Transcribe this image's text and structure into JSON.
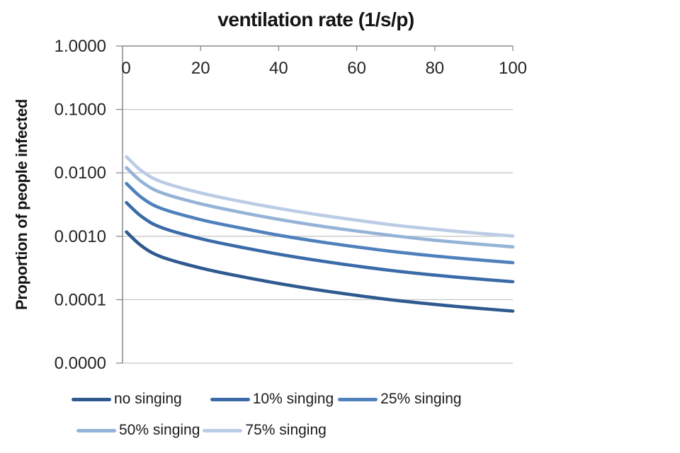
{
  "chart": {
    "title": "ventilation rate (1/s/p)",
    "y_axis_title": "Proportion of people infected"
  },
  "chart_data": {
    "type": "line",
    "title": "",
    "xlabel": "ventilation rate (1/s/p)",
    "ylabel": "Proportion of people infected",
    "x_axis_position": "top",
    "y_scale": "log",
    "x_range": [
      0,
      100
    ],
    "y_range": [
      1e-05,
      1
    ],
    "grid": true,
    "legend_position": "bottom",
    "x_ticks": [
      0,
      20,
      40,
      60,
      80,
      100
    ],
    "y_ticks": [
      {
        "label": "1.0000",
        "value": 1
      },
      {
        "label": "0.1000",
        "value": 0.1
      },
      {
        "label": "0.0100",
        "value": 0.01
      },
      {
        "label": "0.0010",
        "value": 0.001
      },
      {
        "label": "0.0001",
        "value": 0.0001
      },
      {
        "label": "0.0000",
        "value": 1e-05
      }
    ],
    "x": [
      1,
      5,
      10,
      20,
      30,
      40,
      50,
      60,
      70,
      80,
      90,
      100
    ],
    "series": [
      {
        "name": "no singing",
        "color": "#2F5A8F",
        "values": [
          0.00117,
          0.000695,
          0.000472,
          0.000316,
          0.000234,
          0.00018,
          0.000143,
          0.000117,
          9.77e-05,
          8.41e-05,
          7.41e-05,
          6.61e-05
        ]
      },
      {
        "name": "10% singing",
        "color": "#3A6BA8",
        "values": [
          0.00339,
          0.00202,
          0.00137,
          0.000916,
          0.000679,
          0.000522,
          0.000415,
          0.000339,
          0.000283,
          0.000244,
          0.000215,
          0.000192
        ]
      },
      {
        "name": "25% singing",
        "color": "#4F81BD",
        "values": [
          0.00679,
          0.00403,
          0.00274,
          0.00183,
          0.00136,
          0.00104,
          0.000829,
          0.000679,
          0.000567,
          0.000488,
          0.00043,
          0.000383
        ]
      },
      {
        "name": "50% singing",
        "color": "#95B3D7",
        "values": [
          0.01205,
          0.00716,
          0.00486,
          0.00325,
          0.00241,
          0.00185,
          0.00147,
          0.00121,
          0.00101,
          0.000866,
          0.000763,
          0.000681
        ]
      },
      {
        "name": "75% singing",
        "color": "#BCCCE6",
        "values": [
          0.0179,
          0.0106,
          0.00722,
          0.00483,
          0.00358,
          0.00275,
          0.00219,
          0.00179,
          0.00149,
          0.00129,
          0.00113,
          0.00101
        ]
      }
    ],
    "colors": {
      "gridline": "#C8C8C8",
      "axis": "#8A8A8A",
      "tick_text": "#242424",
      "title_text": "#141414"
    }
  }
}
